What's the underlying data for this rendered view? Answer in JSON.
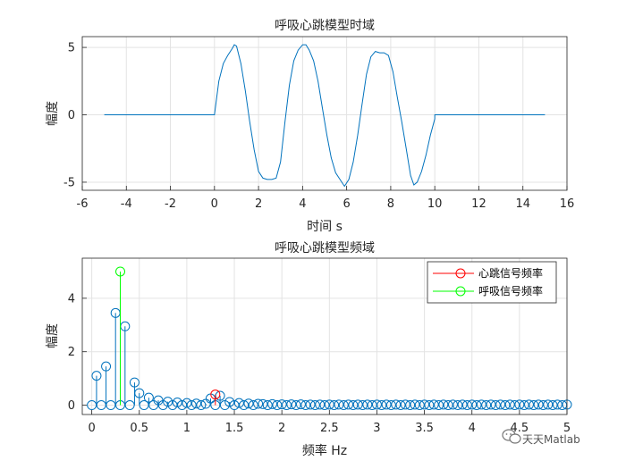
{
  "watermark": {
    "text": "天天Matlab",
    "icon": "wechat-icon"
  },
  "chart_data": [
    {
      "type": "line",
      "title": "呼吸心跳模型时域",
      "xlabel": "时间 s",
      "ylabel": "幅度",
      "xlim": [
        -6,
        16
      ],
      "ylim": [
        -5.6,
        5.8
      ],
      "xticks": [
        -6,
        -4,
        -2,
        0,
        2,
        4,
        6,
        8,
        10,
        12,
        14,
        16
      ],
      "yticks": [
        -5,
        0,
        5
      ],
      "grid": true,
      "color": "#0072BD",
      "series": [
        {
          "x": [
            -5,
            0,
            0.2,
            0.4,
            0.6,
            0.8,
            0.9,
            1.0,
            1.2,
            1.4,
            1.6,
            1.8,
            2.0,
            2.2,
            2.4,
            2.6,
            2.8,
            3.0,
            3.2,
            3.4,
            3.6,
            3.8,
            4.0,
            4.15,
            4.3,
            4.5,
            4.7,
            4.9,
            5.1,
            5.3,
            5.5,
            5.7,
            5.9,
            6.1,
            6.3,
            6.5,
            6.7,
            6.9,
            7.1,
            7.3,
            7.5,
            7.7,
            7.9,
            8.1,
            8.3,
            8.5,
            8.7,
            8.9,
            9.05,
            9.2,
            9.4,
            9.6,
            9.8,
            10.0,
            10.0,
            15
          ],
          "y": [
            0,
            0,
            2.5,
            3.8,
            4.4,
            4.9,
            5.2,
            5.1,
            3.8,
            1.8,
            -0.5,
            -2.6,
            -4.2,
            -4.7,
            -4.8,
            -4.8,
            -4.7,
            -3.5,
            -0.5,
            2.2,
            4.0,
            4.8,
            5.2,
            5.2,
            4.8,
            4.0,
            2.5,
            0.5,
            -1.5,
            -3.2,
            -4.3,
            -4.8,
            -5.3,
            -4.8,
            -3.5,
            -1.5,
            0.8,
            3.0,
            4.3,
            4.7,
            4.6,
            4.6,
            4.4,
            3.2,
            1.3,
            -0.5,
            -2.5,
            -4.5,
            -5.2,
            -5.0,
            -4.2,
            -3.0,
            -1.5,
            -0.3,
            0,
            0
          ]
        }
      ]
    },
    {
      "type": "stem",
      "title": "呼吸心跳模型频域",
      "xlabel": "频率 Hz",
      "ylabel": "幅度",
      "xlim": [
        -0.1,
        5
      ],
      "ylim": [
        -0.35,
        5.5
      ],
      "xticks": [
        0,
        0.5,
        1,
        1.5,
        2,
        2.5,
        3,
        3.5,
        4,
        4.5,
        5
      ],
      "xticklabels": [
        "0",
        "0.5",
        "1",
        "1.5",
        "2",
        "2.5",
        "3",
        "3.5",
        "4",
        "4.5",
        "5"
      ],
      "yticks": [
        0,
        2,
        4
      ],
      "grid": true,
      "legend": {
        "location": "top-right",
        "entries": [
          "心跳信号频率",
          "呼吸信号频率"
        ]
      },
      "series": [
        {
          "name": "",
          "color": "#0072BD",
          "x": [
            0,
            0.05,
            0.1,
            0.15,
            0.2,
            0.25,
            0.3,
            0.35,
            0.4,
            0.45,
            0.5,
            0.55,
            0.6,
            0.65,
            0.7,
            0.75,
            0.8,
            0.85,
            0.9,
            0.95,
            1.0,
            1.05,
            1.1,
            1.15,
            1.2,
            1.25,
            1.3,
            1.35,
            1.4,
            1.45,
            1.5,
            1.55,
            1.6,
            1.65,
            1.7,
            1.75,
            1.8,
            1.85,
            1.9,
            1.95,
            2.0,
            2.05,
            2.1,
            2.15,
            2.2,
            2.25,
            2.3,
            2.35,
            2.4,
            2.45,
            2.5,
            2.55,
            2.6,
            2.65,
            2.7,
            2.75,
            2.8,
            2.85,
            2.9,
            2.95,
            3.0,
            3.05,
            3.1,
            3.15,
            3.2,
            3.25,
            3.3,
            3.35,
            3.4,
            3.45,
            3.5,
            3.55,
            3.6,
            3.65,
            3.7,
            3.75,
            3.8,
            3.85,
            3.9,
            3.95,
            4.0,
            4.05,
            4.1,
            4.15,
            4.2,
            4.25,
            4.3,
            4.35,
            4.4,
            4.45,
            4.5,
            4.55,
            4.6,
            4.65,
            4.7,
            4.75,
            4.8,
            4.85,
            4.9,
            4.95,
            5.0
          ],
          "y": [
            0,
            1.1,
            0,
            1.45,
            0,
            3.45,
            0,
            2.95,
            0,
            0.85,
            0.45,
            0,
            0.28,
            0,
            0.18,
            0,
            0.13,
            0,
            0.1,
            0,
            0.08,
            0,
            0.06,
            0,
            0.05,
            0.25,
            0,
            0.35,
            0,
            0.12,
            0,
            0.08,
            0,
            0.06,
            0,
            0.05,
            0.04,
            0,
            0.04,
            0,
            0.03,
            0,
            0.03,
            0,
            0.03,
            0,
            0.02,
            0,
            0.02,
            0,
            0.02,
            0,
            0.02,
            0,
            0.02,
            0,
            0.02,
            0,
            0.02,
            0,
            0.02,
            0,
            0.02,
            0,
            0.02,
            0,
            0.02,
            0,
            0.02,
            0,
            0.02,
            0,
            0.02,
            0,
            0.02,
            0,
            0.02,
            0,
            0.02,
            0,
            0.02,
            0,
            0.02,
            0,
            0.02,
            0,
            0.02,
            0,
            0.02,
            0,
            0.02,
            0,
            0.02,
            0,
            0.02,
            0,
            0.02,
            0,
            0.02,
            0,
            0.02
          ]
        },
        {
          "name": "心跳信号频率",
          "color": "#FF0000",
          "x": [
            1.3
          ],
          "y": [
            0.4
          ]
        },
        {
          "name": "呼吸信号频率",
          "color": "#00FF00",
          "x": [
            0.3
          ],
          "y": [
            5.0
          ]
        }
      ]
    }
  ]
}
